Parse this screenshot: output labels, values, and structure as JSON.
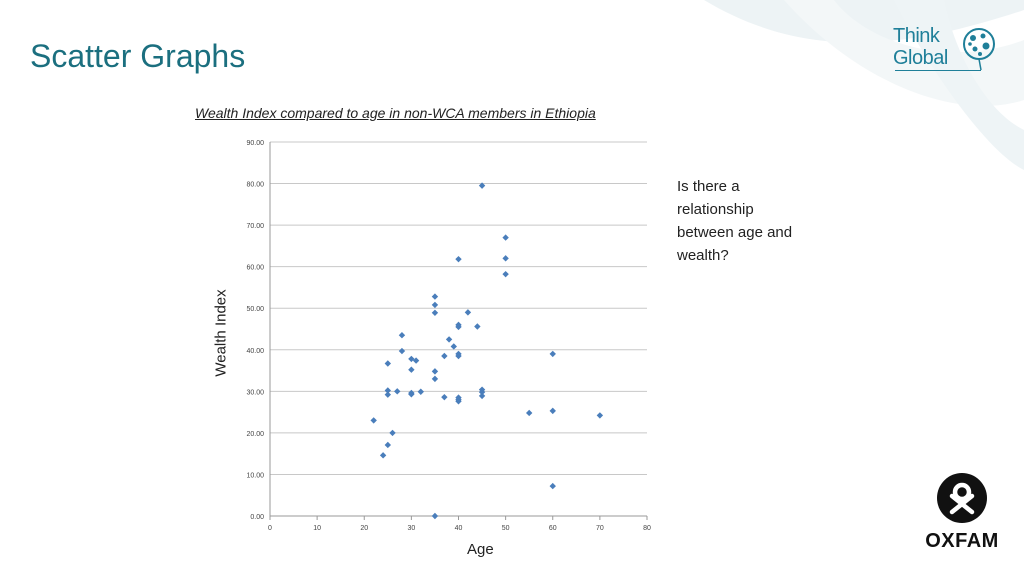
{
  "slide": {
    "title": "Scatter Graphs",
    "question": "Is there a relationship between age and wealth?"
  },
  "logos": {
    "think_global_line1": "Think",
    "think_global_line2": "Global",
    "oxfam": "OXFAM"
  },
  "colors": {
    "title": "#1b6f7f",
    "marker": "#4a7ebb",
    "grid": "#c8c8c8",
    "brand_think_global": "#1f7f99"
  },
  "chart_data": {
    "type": "scatter",
    "title": "Wealth Index compared to age in non-WCA members in Ethiopia",
    "xlabel": "Age",
    "ylabel": "Wealth Index",
    "xlim": [
      0,
      80
    ],
    "ylim": [
      0,
      90
    ],
    "xticks": [
      "0",
      "10",
      "20",
      "30",
      "40",
      "50",
      "60",
      "70",
      "80"
    ],
    "yticks": [
      "0.00",
      "10.00",
      "20.00",
      "30.00",
      "40.00",
      "50.00",
      "60.00",
      "70.00",
      "80.00",
      "90.00"
    ],
    "grid": "horizontal",
    "marker": "diamond",
    "points": [
      [
        45,
        79.5
      ],
      [
        50,
        67
      ],
      [
        40,
        61.8
      ],
      [
        50,
        62
      ],
      [
        50,
        58.2
      ],
      [
        35,
        52.8
      ],
      [
        35,
        50.8
      ],
      [
        35,
        48.9
      ],
      [
        42,
        49
      ],
      [
        40,
        46
      ],
      [
        40,
        45.5
      ],
      [
        44,
        45.6
      ],
      [
        28,
        43.5
      ],
      [
        38,
        42.5
      ],
      [
        39,
        40.8
      ],
      [
        28,
        39.7
      ],
      [
        40,
        39
      ],
      [
        40,
        38.5
      ],
      [
        37,
        38.5
      ],
      [
        30,
        37.8
      ],
      [
        31,
        37.4
      ],
      [
        25,
        36.7
      ],
      [
        30,
        35.2
      ],
      [
        35,
        34.8
      ],
      [
        35,
        33
      ],
      [
        25,
        30.2
      ],
      [
        27,
        30
      ],
      [
        25,
        29.2
      ],
      [
        30,
        29.3
      ],
      [
        30,
        29.6
      ],
      [
        32,
        29.9
      ],
      [
        45,
        30.4
      ],
      [
        45,
        29.8
      ],
      [
        45,
        28.9
      ],
      [
        37,
        28.6
      ],
      [
        40,
        28.5
      ],
      [
        40,
        28
      ],
      [
        40,
        27.6
      ],
      [
        55,
        24.8
      ],
      [
        60,
        25.3
      ],
      [
        70,
        24.2
      ],
      [
        60,
        39
      ],
      [
        22,
        23
      ],
      [
        26,
        20
      ],
      [
        25,
        17.1
      ],
      [
        24,
        14.6
      ],
      [
        60,
        7.2
      ],
      [
        35,
        0
      ]
    ]
  }
}
